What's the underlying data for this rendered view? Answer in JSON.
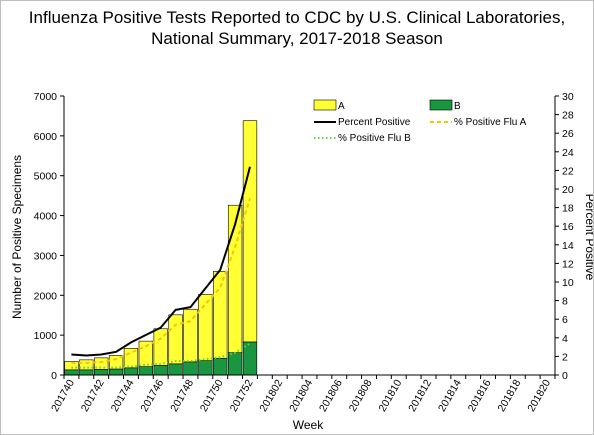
{
  "chart_data": {
    "type": "bar",
    "title_line1": "Influenza Positive Tests Reported to CDC by U.S. Clinical Laboratories,",
    "title_line2": "National Summary, 2017-2018 Season",
    "xlabel": "Week",
    "ylabel_left": "Number of Positive Specimens",
    "ylabel_right": "Percent Positive",
    "ylim_left": [
      0,
      7000
    ],
    "yticks_left": [
      "0",
      "1000",
      "2000",
      "3000",
      "4000",
      "5000",
      "6000",
      "7000"
    ],
    "ylim_right": [
      0,
      30
    ],
    "yticks_right": [
      "0",
      "2",
      "4",
      "6",
      "8",
      "10",
      "12",
      "14",
      "16",
      "18",
      "20",
      "22",
      "24",
      "26",
      "28",
      "30"
    ],
    "week_labels": [
      "201740",
      "201742",
      "201744",
      "201746",
      "201748",
      "201750",
      "201752",
      "201802",
      "201804",
      "201806",
      "201808",
      "201810",
      "201812",
      "201814",
      "201816",
      "201818",
      "201820"
    ],
    "weeks_total": 33,
    "stacked_bars": [
      {
        "name": "A",
        "color": "#ffff33",
        "values": [
          210,
          250,
          290,
          340,
          490,
          640,
          920,
          1230,
          1320,
          1660,
          2180,
          3700,
          5550
        ]
      },
      {
        "name": "B",
        "color": "#1a9641",
        "values": [
          130,
          130,
          140,
          150,
          180,
          210,
          240,
          280,
          330,
          360,
          420,
          560,
          830
        ]
      }
    ],
    "line_series": [
      {
        "name": "Percent Positive",
        "color": "#000000",
        "style": "solid",
        "values": [
          2.2,
          2.1,
          2.2,
          2.5,
          3.5,
          4.3,
          5.1,
          7.0,
          7.3,
          9.3,
          11.3,
          16.2,
          22.4
        ]
      },
      {
        "name": "% Positive Flu A",
        "color": "#f5c600",
        "style": "dashed",
        "values": [
          1.3,
          1.3,
          1.4,
          1.7,
          2.4,
          3.1,
          3.9,
          5.4,
          5.8,
          7.6,
          9.4,
          13.8,
          19.0
        ]
      },
      {
        "name": "% Positive Flu B",
        "color": "#66cc44",
        "style": "dotted",
        "values": [
          0.8,
          0.8,
          0.8,
          0.8,
          0.9,
          1.1,
          1.2,
          1.5,
          1.5,
          1.7,
          1.9,
          2.4,
          3.4
        ]
      }
    ],
    "legend": {
      "label_a": "A",
      "label_b": "B",
      "label_pct": "Percent Positive",
      "label_pct_a": "% Positive Flu A",
      "label_pct_b": "% Positive Flu B"
    },
    "grid": false
  }
}
